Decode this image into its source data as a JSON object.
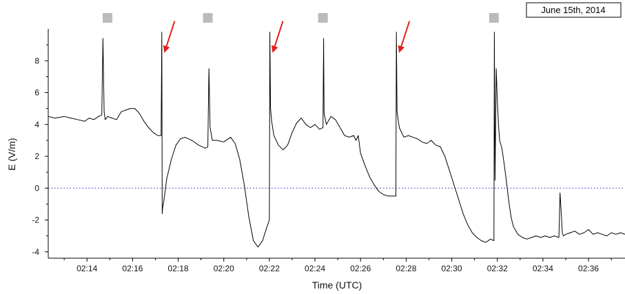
{
  "chart_data": {
    "type": "line",
    "title": "",
    "date_label": "June 15th, 2014",
    "xlabel": "Time (UTC)",
    "ylabel": "E (V/m)",
    "x_unit": "minutes after 02:00 UTC",
    "xlim": [
      12.3,
      37.6
    ],
    "ylim": [
      -4.4,
      10
    ],
    "x_ticks": [
      {
        "value": 14,
        "label": "02:14"
      },
      {
        "value": 16,
        "label": "02:16"
      },
      {
        "value": 18,
        "label": "02:18"
      },
      {
        "value": 20,
        "label": "02:20"
      },
      {
        "value": 22,
        "label": "02:22"
      },
      {
        "value": 24,
        "label": "02:24"
      },
      {
        "value": 26,
        "label": "02:26"
      },
      {
        "value": 28,
        "label": "02:28"
      },
      {
        "value": 30,
        "label": "02:30"
      },
      {
        "value": 32,
        "label": "02:32"
      },
      {
        "value": 34,
        "label": "02:34"
      },
      {
        "value": 36,
        "label": "02:36"
      }
    ],
    "y_ticks": [
      {
        "value": -4,
        "label": "-4"
      },
      {
        "value": -2,
        "label": "-2"
      },
      {
        "value": 0,
        "label": "0"
      },
      {
        "value": 2,
        "label": "2"
      },
      {
        "value": 4,
        "label": "4"
      },
      {
        "value": 6,
        "label": "6"
      },
      {
        "value": 8,
        "label": "8"
      }
    ],
    "reference_line": {
      "y": 0,
      "style": "dotted",
      "color": "#4a4ad8"
    },
    "series": [
      {
        "color": "#000000",
        "x": [
          12.3,
          12.6,
          13.0,
          13.3,
          13.6,
          13.9,
          14.1,
          14.3,
          14.5,
          14.65,
          14.7,
          14.75,
          14.8,
          14.9,
          15.1,
          15.3,
          15.5,
          15.7,
          15.9,
          16.1,
          16.3,
          16.5,
          16.7,
          16.9,
          17.1,
          17.25,
          17.28,
          17.3,
          17.32,
          17.35,
          17.4,
          17.5,
          17.7,
          17.9,
          18.1,
          18.3,
          18.6,
          18.9,
          19.2,
          19.3,
          19.35,
          19.4,
          19.5,
          19.7,
          20.0,
          20.3,
          20.5,
          20.7,
          20.9,
          21.1,
          21.3,
          21.5,
          21.7,
          21.9,
          22.0,
          22.02,
          22.05,
          22.1,
          22.2,
          22.4,
          22.6,
          22.8,
          23.0,
          23.2,
          23.4,
          23.6,
          23.8,
          24.0,
          24.2,
          24.35,
          24.38,
          24.4,
          24.5,
          24.7,
          24.9,
          25.1,
          25.3,
          25.5,
          25.7,
          25.8,
          25.9,
          26.0,
          26.2,
          26.4,
          26.6,
          26.8,
          27.0,
          27.2,
          27.4,
          27.55,
          27.57,
          27.6,
          27.7,
          27.9,
          28.1,
          28.3,
          28.5,
          28.7,
          28.9,
          29.1,
          29.3,
          29.5,
          29.7,
          29.9,
          30.1,
          30.3,
          30.5,
          30.7,
          30.9,
          31.1,
          31.3,
          31.5,
          31.7,
          31.85,
          31.87,
          31.9,
          31.95,
          32.0,
          32.05,
          32.1,
          32.2,
          32.3,
          32.4,
          32.5,
          32.6,
          32.7,
          32.9,
          33.1,
          33.3,
          33.5,
          33.7,
          33.9,
          34.1,
          34.3,
          34.5,
          34.7,
          34.75,
          34.8,
          34.85,
          34.9,
          35.0,
          35.2,
          35.4,
          35.6,
          35.8,
          36.0,
          36.2,
          36.4,
          36.6,
          36.8,
          37.0,
          37.2,
          37.4,
          37.6
        ],
        "y": [
          4.5,
          4.4,
          4.5,
          4.4,
          4.3,
          4.2,
          4.4,
          4.3,
          4.5,
          4.6,
          9.4,
          4.8,
          4.3,
          4.5,
          4.4,
          4.3,
          4.8,
          4.9,
          5.0,
          5.0,
          4.7,
          4.2,
          3.8,
          3.5,
          3.3,
          3.3,
          9.8,
          -1.6,
          -1.2,
          -1.0,
          -0.5,
          0.6,
          1.8,
          2.7,
          3.1,
          3.2,
          3.0,
          2.7,
          2.5,
          2.6,
          7.5,
          3.8,
          3.0,
          3.0,
          2.9,
          3.2,
          2.8,
          1.8,
          0.2,
          -1.8,
          -3.3,
          -3.7,
          -3.3,
          -2.4,
          -2.0,
          9.8,
          5.0,
          4.2,
          3.3,
          2.7,
          2.4,
          2.7,
          3.5,
          4.1,
          4.4,
          4.0,
          3.8,
          4.0,
          3.7,
          3.8,
          9.4,
          4.7,
          4.0,
          4.5,
          4.3,
          3.8,
          3.3,
          3.2,
          3.3,
          3.0,
          3.3,
          2.2,
          1.4,
          0.7,
          0.2,
          -0.2,
          -0.4,
          -0.5,
          -0.5,
          -0.5,
          9.8,
          4.8,
          3.8,
          3.2,
          3.3,
          3.2,
          3.1,
          2.9,
          2.8,
          3.0,
          2.7,
          2.6,
          2.0,
          1.1,
          0.2,
          -0.7,
          -1.6,
          -2.3,
          -2.8,
          -3.1,
          -3.3,
          -3.4,
          -3.2,
          -3.3,
          9.8,
          0.5,
          7.5,
          5.5,
          4.0,
          3.0,
          2.5,
          1.5,
          0.4,
          -0.8,
          -1.8,
          -2.4,
          -2.9,
          -3.1,
          -3.2,
          -3.1,
          -3.0,
          -3.1,
          -3.0,
          -3.1,
          -3.0,
          -3.1,
          -0.3,
          -1.5,
          -2.8,
          -3.0,
          -2.9,
          -2.8,
          -2.7,
          -2.9,
          -2.8,
          -2.6,
          -2.9,
          -2.8,
          -2.9,
          -3.0,
          -2.8,
          -2.9,
          -2.8,
          -2.9
        ]
      }
    ],
    "markers": [
      {
        "type": "square",
        "color": "#bbbbbb",
        "x": 14.9
      },
      {
        "type": "square",
        "color": "#bbbbbb",
        "x": 19.3
      },
      {
        "type": "square",
        "color": "#bbbbbb",
        "x": 24.35
      },
      {
        "type": "square",
        "color": "#bbbbbb",
        "x": 31.85
      },
      {
        "type": "arrow",
        "color": "#e02020",
        "x": 17.3
      },
      {
        "type": "arrow",
        "color": "#e02020",
        "x": 22.05
      },
      {
        "type": "arrow",
        "color": "#e02020",
        "x": 27.6
      }
    ],
    "grid": false,
    "legend": "none"
  }
}
